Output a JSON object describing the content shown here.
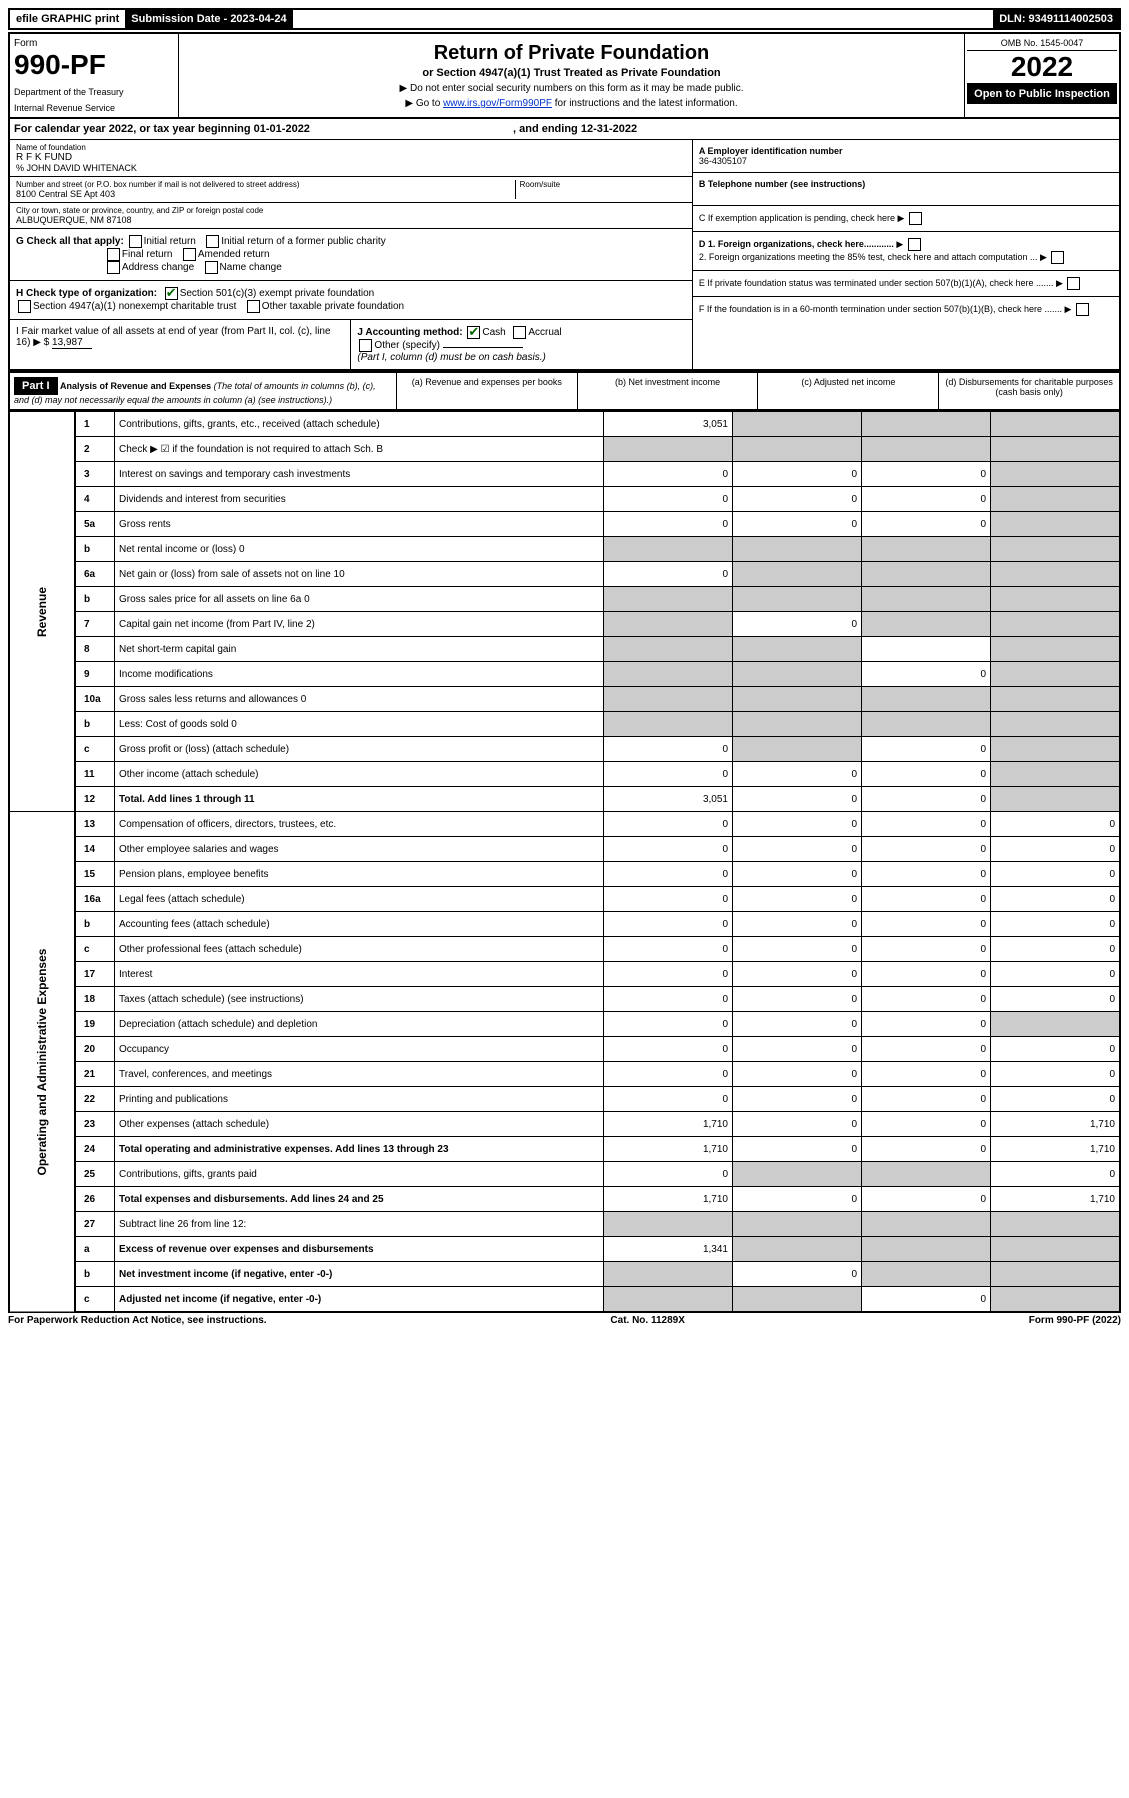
{
  "top": {
    "efile": "efile GRAPHIC print",
    "submission": "Submission Date - 2023-04-24",
    "dln": "DLN: 93491114002503"
  },
  "header": {
    "form_label": "Form",
    "form_num": "990-PF",
    "dept": "Department of the Treasury",
    "irs": "Internal Revenue Service",
    "title": "Return of Private Foundation",
    "subtitle": "or Section 4947(a)(1) Trust Treated as Private Foundation",
    "instr1": "▶ Do not enter social security numbers on this form as it may be made public.",
    "instr2_pre": "▶ Go to ",
    "instr2_link": "www.irs.gov/Form990PF",
    "instr2_post": " for instructions and the latest information.",
    "omb": "OMB No. 1545-0047",
    "year": "2022",
    "open": "Open to Public Inspection"
  },
  "cal": {
    "text_pre": "For calendar year 2022, or tax year beginning ",
    "begin": "01-01-2022",
    "mid": " , and ending ",
    "end": "12-31-2022"
  },
  "entity": {
    "name_lbl": "Name of foundation",
    "name": "R F K FUND",
    "care_of": "% JOHN DAVID WHITENACK",
    "addr_lbl": "Number and street (or P.O. box number if mail is not delivered to street address)",
    "addr": "8100 Central SE Apt 403",
    "room_lbl": "Room/suite",
    "city_lbl": "City or town, state or province, country, and ZIP or foreign postal code",
    "city": "ALBUQUERQUE, NM  87108",
    "ein_lbl": "A Employer identification number",
    "ein": "36-4305107",
    "tel_lbl": "B Telephone number (see instructions)",
    "c_lbl": "C If exemption application is pending, check here",
    "d1": "D 1. Foreign organizations, check here............",
    "d2": "2. Foreign organizations meeting the 85% test, check here and attach computation ...",
    "e": "E If private foundation status was terminated under section 507(b)(1)(A), check here .......",
    "f": "F If the foundation is in a 60-month termination under section 507(b)(1)(B), check here .......",
    "g_lbl": "G Check all that apply:",
    "g_opts": [
      "Initial return",
      "Initial return of a former public charity",
      "Final return",
      "Amended return",
      "Address change",
      "Name change"
    ],
    "h_lbl": "H Check type of organization:",
    "h1": "Section 501(c)(3) exempt private foundation",
    "h2": "Section 4947(a)(1) nonexempt charitable trust",
    "h3": "Other taxable private foundation",
    "i_lbl": "I Fair market value of all assets at end of year (from Part II, col. (c), line 16) ▶ $",
    "i_val": "13,987",
    "j_lbl": "J Accounting method:",
    "j_cash": "Cash",
    "j_accrual": "Accrual",
    "j_other": "Other (specify)",
    "j_note": "(Part I, column (d) must be on cash basis.)"
  },
  "part1": {
    "label": "Part I",
    "title": "Analysis of Revenue and Expenses",
    "title_note": "(The total of amounts in columns (b), (c), and (d) may not necessarily equal the amounts in column (a) (see instructions).)",
    "cols": {
      "a": "(a) Revenue and expenses per books",
      "b": "(b) Net investment income",
      "c": "(c) Adjusted net income",
      "d": "(d) Disbursements for charitable purposes (cash basis only)"
    }
  },
  "sides": {
    "rev": "Revenue",
    "exp": "Operating and Administrative Expenses"
  },
  "lines": [
    {
      "n": "1",
      "label": "Contributions, gifts, grants, etc., received (attach schedule)",
      "a": "3,051",
      "b": "shaded",
      "c": "shaded",
      "d": "shaded"
    },
    {
      "n": "2",
      "label": "Check ▶ ☑ if the foundation is not required to attach Sch. B",
      "a": "shaded",
      "b": "shaded",
      "c": "shaded",
      "d": "shaded",
      "bold": false
    },
    {
      "n": "3",
      "label": "Interest on savings and temporary cash investments",
      "a": "0",
      "b": "0",
      "c": "0",
      "d": "shaded"
    },
    {
      "n": "4",
      "label": "Dividends and interest from securities",
      "a": "0",
      "b": "0",
      "c": "0",
      "d": "shaded"
    },
    {
      "n": "5a",
      "label": "Gross rents",
      "a": "0",
      "b": "0",
      "c": "0",
      "d": "shaded"
    },
    {
      "n": "b",
      "label": "Net rental income or (loss)     0",
      "a": "shaded",
      "b": "shaded",
      "c": "shaded",
      "d": "shaded"
    },
    {
      "n": "6a",
      "label": "Net gain or (loss) from sale of assets not on line 10",
      "a": "0",
      "b": "shaded",
      "c": "shaded",
      "d": "shaded"
    },
    {
      "n": "b",
      "label": "Gross sales price for all assets on line 6a     0",
      "a": "shaded",
      "b": "shaded",
      "c": "shaded",
      "d": "shaded"
    },
    {
      "n": "7",
      "label": "Capital gain net income (from Part IV, line 2)",
      "a": "shaded",
      "b": "0",
      "c": "shaded",
      "d": "shaded"
    },
    {
      "n": "8",
      "label": "Net short-term capital gain",
      "a": "shaded",
      "b": "shaded",
      "c": "",
      "d": "shaded"
    },
    {
      "n": "9",
      "label": "Income modifications",
      "a": "shaded",
      "b": "shaded",
      "c": "0",
      "d": "shaded"
    },
    {
      "n": "10a",
      "label": "Gross sales less returns and allowances     0",
      "a": "shaded",
      "b": "shaded",
      "c": "shaded",
      "d": "shaded"
    },
    {
      "n": "b",
      "label": "Less: Cost of goods sold     0",
      "a": "shaded",
      "b": "shaded",
      "c": "shaded",
      "d": "shaded"
    },
    {
      "n": "c",
      "label": "Gross profit or (loss) (attach schedule)",
      "a": "0",
      "b": "shaded",
      "c": "0",
      "d": "shaded"
    },
    {
      "n": "11",
      "label": "Other income (attach schedule)",
      "a": "0",
      "b": "0",
      "c": "0",
      "d": "shaded"
    },
    {
      "n": "12",
      "label": "Total. Add lines 1 through 11",
      "a": "3,051",
      "b": "0",
      "c": "0",
      "d": "shaded",
      "bold": true
    },
    {
      "n": "13",
      "label": "Compensation of officers, directors, trustees, etc.",
      "a": "0",
      "b": "0",
      "c": "0",
      "d": "0"
    },
    {
      "n": "14",
      "label": "Other employee salaries and wages",
      "a": "0",
      "b": "0",
      "c": "0",
      "d": "0"
    },
    {
      "n": "15",
      "label": "Pension plans, employee benefits",
      "a": "0",
      "b": "0",
      "c": "0",
      "d": "0"
    },
    {
      "n": "16a",
      "label": "Legal fees (attach schedule)",
      "a": "0",
      "b": "0",
      "c": "0",
      "d": "0"
    },
    {
      "n": "b",
      "label": "Accounting fees (attach schedule)",
      "a": "0",
      "b": "0",
      "c": "0",
      "d": "0"
    },
    {
      "n": "c",
      "label": "Other professional fees (attach schedule)",
      "a": "0",
      "b": "0",
      "c": "0",
      "d": "0"
    },
    {
      "n": "17",
      "label": "Interest",
      "a": "0",
      "b": "0",
      "c": "0",
      "d": "0"
    },
    {
      "n": "18",
      "label": "Taxes (attach schedule) (see instructions)",
      "a": "0",
      "b": "0",
      "c": "0",
      "d": "0"
    },
    {
      "n": "19",
      "label": "Depreciation (attach schedule) and depletion",
      "a": "0",
      "b": "0",
      "c": "0",
      "d": "shaded"
    },
    {
      "n": "20",
      "label": "Occupancy",
      "a": "0",
      "b": "0",
      "c": "0",
      "d": "0"
    },
    {
      "n": "21",
      "label": "Travel, conferences, and meetings",
      "a": "0",
      "b": "0",
      "c": "0",
      "d": "0"
    },
    {
      "n": "22",
      "label": "Printing and publications",
      "a": "0",
      "b": "0",
      "c": "0",
      "d": "0"
    },
    {
      "n": "23",
      "label": "Other expenses (attach schedule)",
      "a": "1,710",
      "b": "0",
      "c": "0",
      "d": "1,710",
      "icon": true
    },
    {
      "n": "24",
      "label": "Total operating and administrative expenses. Add lines 13 through 23",
      "a": "1,710",
      "b": "0",
      "c": "0",
      "d": "1,710",
      "bold": true
    },
    {
      "n": "25",
      "label": "Contributions, gifts, grants paid",
      "a": "0",
      "b": "shaded",
      "c": "shaded",
      "d": "0"
    },
    {
      "n": "26",
      "label": "Total expenses and disbursements. Add lines 24 and 25",
      "a": "1,710",
      "b": "0",
      "c": "0",
      "d": "1,710",
      "bold": true
    },
    {
      "n": "27",
      "label": "Subtract line 26 from line 12:",
      "a": "shaded",
      "b": "shaded",
      "c": "shaded",
      "d": "shaded"
    },
    {
      "n": "a",
      "label": "Excess of revenue over expenses and disbursements",
      "a": "1,341",
      "b": "shaded",
      "c": "shaded",
      "d": "shaded",
      "bold": true
    },
    {
      "n": "b",
      "label": "Net investment income (if negative, enter -0-)",
      "a": "shaded",
      "b": "0",
      "c": "shaded",
      "d": "shaded",
      "bold": true
    },
    {
      "n": "c",
      "label": "Adjusted net income (if negative, enter -0-)",
      "a": "shaded",
      "b": "shaded",
      "c": "0",
      "d": "shaded",
      "bold": true
    }
  ],
  "footer": {
    "left": "For Paperwork Reduction Act Notice, see instructions.",
    "mid": "Cat. No. 11289X",
    "right": "Form 990-PF (2022)"
  }
}
